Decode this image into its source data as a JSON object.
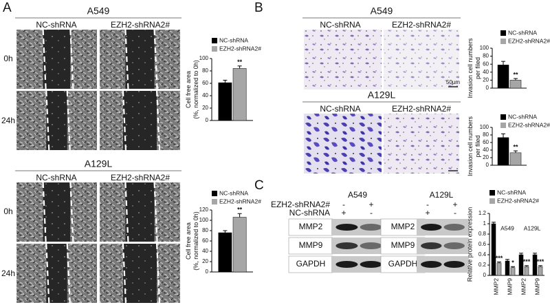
{
  "figure": {
    "panels": [
      "A",
      "B",
      "C"
    ],
    "panel_a": {
      "blocks": [
        {
          "title": "A549",
          "columns": [
            "NC-shRNA",
            "EZH2-shRNA2#"
          ],
          "rows": [
            "0h",
            "24h"
          ]
        },
        {
          "title": "A129L",
          "columns": [
            "NC-shRNA",
            "EZH2-shRNA2#"
          ],
          "rows": [
            "0h",
            "24h"
          ]
        }
      ]
    },
    "panel_b": {
      "blocks": [
        {
          "title": "A549",
          "columns": [
            "NC-shRNA",
            "EZH2-shRNA2#"
          ],
          "scale_bar": "50µm"
        },
        {
          "title": "A129L",
          "columns": [
            "NC-shRNA",
            "EZH2-shRNA2#"
          ]
        }
      ]
    },
    "panel_c": {
      "cell_lines": [
        "A549",
        "A129L"
      ],
      "treatments": [
        "EZH2-shRNA2#",
        "NC-shRNA"
      ],
      "signs": [
        [
          "-",
          "+"
        ],
        [
          "+",
          "-"
        ]
      ],
      "proteins": [
        "MMP2",
        "MMP9",
        "GAPDH"
      ]
    }
  },
  "chart_data": [
    {
      "type": "bar",
      "ylabel": [
        "Cell free area",
        "(%, normalized to 0h)"
      ],
      "categories": [
        null
      ],
      "series": [
        {
          "name": "NC-shRNA",
          "color": "#000000",
          "values": [
            61
          ],
          "errors": [
            4
          ]
        },
        {
          "name": "EZH2-shRNA2#",
          "color": "#a6a6a6",
          "values": [
            84
          ],
          "errors": [
            4
          ]
        }
      ],
      "annotations": [
        "**"
      ],
      "ylim": [
        0,
        100
      ],
      "yticks": [
        0,
        20,
        40,
        60,
        80,
        100
      ]
    },
    {
      "type": "bar",
      "ylabel": [
        "Cell free area",
        "(%, normalized to 0h)"
      ],
      "categories": [
        null
      ],
      "series": [
        {
          "name": "NC-shRNA",
          "color": "#000000",
          "values": [
            76
          ],
          "errors": [
            4
          ]
        },
        {
          "name": "EZH2-shRNA2#",
          "color": "#a6a6a6",
          "values": [
            106
          ],
          "errors": [
            7
          ]
        }
      ],
      "annotations": [
        "**"
      ],
      "ylim": [
        0,
        120
      ],
      "yticks": [
        0,
        20,
        40,
        60,
        80,
        100,
        120
      ]
    },
    {
      "type": "bar",
      "ylabel": [
        "Invasion cell numbers",
        "per filed"
      ],
      "categories": [
        null
      ],
      "series": [
        {
          "name": "NC-shRNA",
          "color": "#000000",
          "values": [
            58
          ],
          "errors": [
            9
          ]
        },
        {
          "name": "EZH2-shRNA2#",
          "color": "#a6a6a6",
          "values": [
            20
          ],
          "errors": [
            4
          ]
        }
      ],
      "annotations": [
        "**"
      ],
      "ylim": [
        0,
        100
      ],
      "yticks": [
        0,
        20,
        40,
        60,
        80,
        100
      ]
    },
    {
      "type": "bar",
      "ylabel": [
        "Invasion cell numbers",
        "per filed"
      ],
      "categories": [
        null
      ],
      "series": [
        {
          "name": "NC-shRNA",
          "color": "#000000",
          "values": [
            73
          ],
          "errors": [
            10
          ]
        },
        {
          "name": "EZH2-shRNA2#",
          "color": "#a6a6a6",
          "values": [
            33
          ],
          "errors": [
            5
          ]
        }
      ],
      "annotations": [
        "**"
      ],
      "ylim": [
        0,
        100
      ],
      "yticks": [
        0,
        20,
        40,
        60,
        80,
        100
      ]
    },
    {
      "type": "bar",
      "ylabel": [
        "Relative protein expression"
      ],
      "categories": [
        "MMP2",
        "MMP9",
        "MMP2",
        "MMP9"
      ],
      "groups": [
        "A549",
        "A129L"
      ],
      "series": [
        {
          "name": "NC-shRNA",
          "color": "#000000",
          "values": [
            1.0,
            0.28,
            0.4,
            0.4
          ],
          "errors": [
            0.03,
            0.03,
            0.03,
            0.03
          ]
        },
        {
          "name": "EZH2-shRNA2#",
          "color": "#a6a6a6",
          "values": [
            0.24,
            0.15,
            0.17,
            0.17
          ],
          "errors": [
            0.02,
            0.02,
            0.02,
            0.02
          ]
        }
      ],
      "annotations": [
        "***",
        "*",
        "***",
        "***"
      ],
      "ylim": [
        0,
        1.2
      ],
      "yticks": [
        0,
        0.2,
        0.4,
        0.6,
        0.8,
        1,
        1.2
      ]
    }
  ]
}
